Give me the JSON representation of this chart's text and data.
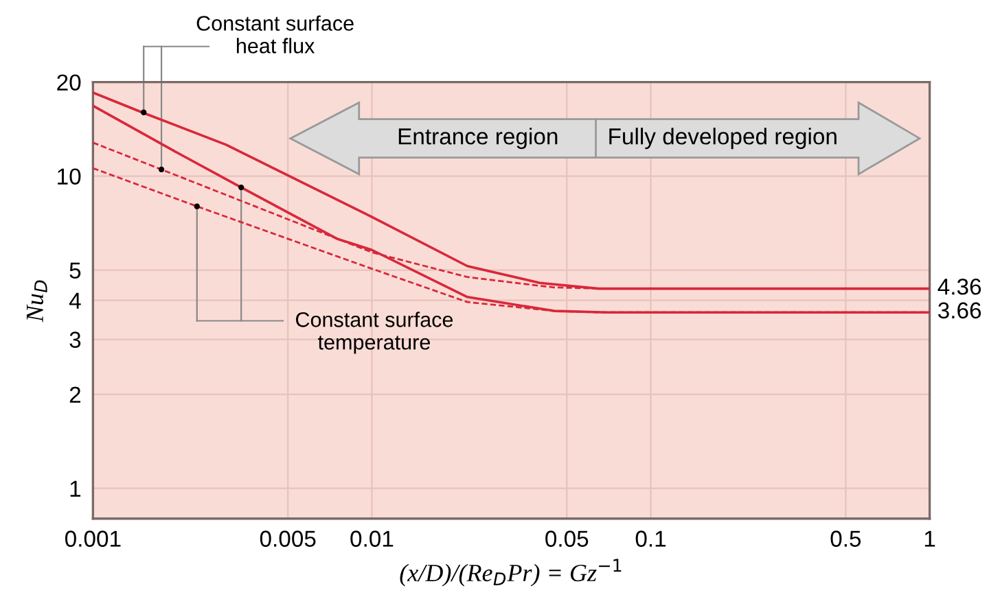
{
  "chart_data": {
    "type": "line",
    "xlabel": "(x/D)/(Re$_{D}$Pr) = Gz$^{−1}$",
    "ylabel": "Nu$_{D}$",
    "log": "xy",
    "xlim": [
      0.001,
      1
    ],
    "ylim": [
      0.8,
      20
    ],
    "xticks": [
      0.001,
      0.005,
      0.01,
      0.05,
      0.1,
      0.5,
      1
    ],
    "yticks": [
      1,
      2,
      3,
      4,
      5,
      10,
      20
    ],
    "grid": true,
    "legend": false,
    "marker": "none",
    "series": [
      {
        "color": "#d8283a",
        "line_style": "solid",
        "x": [
          0.001,
          0.0015,
          0.003,
          0.01,
          0.022,
          0.04,
          0.065,
          1
        ],
        "values": [
          18.5,
          16,
          12.6,
          7.4,
          5.15,
          4.55,
          4.36,
          4.36
        ]
      },
      {
        "color": "#d8283a",
        "line_style": "solid",
        "x": [
          0.001,
          0.002,
          0.0034,
          0.0075,
          0.01,
          0.022,
          0.045,
          0.07,
          1
        ],
        "values": [
          16.8,
          11.9,
          9.2,
          6.3,
          5.8,
          4.1,
          3.7,
          3.66,
          3.66
        ]
      },
      {
        "color": "#d8283a",
        "line_style": "dashed",
        "x": [
          0.001,
          0.00176,
          0.01,
          0.022,
          0.045,
          0.07,
          1
        ],
        "values": [
          12.8,
          10.5,
          5.7,
          4.75,
          4.4,
          4.36,
          4.36
        ]
      },
      {
        "color": "#d8283a",
        "line_style": "dashed",
        "x": [
          0.001,
          0.00236,
          0.01,
          0.022,
          0.045,
          0.065,
          1
        ],
        "values": [
          10.6,
          8.0,
          5.05,
          3.95,
          3.7,
          3.66,
          3.66
        ]
      }
    ],
    "annotations": [
      "Constant surface\nheat flux",
      "Constant surface\ntemperature",
      "Entrance region",
      "Fully developed region",
      {
        "text": "4.36",
        "x": 1,
        "y": 4.36
      },
      {
        "text": "3.66",
        "x": 1,
        "y": 3.66
      }
    ]
  }
}
